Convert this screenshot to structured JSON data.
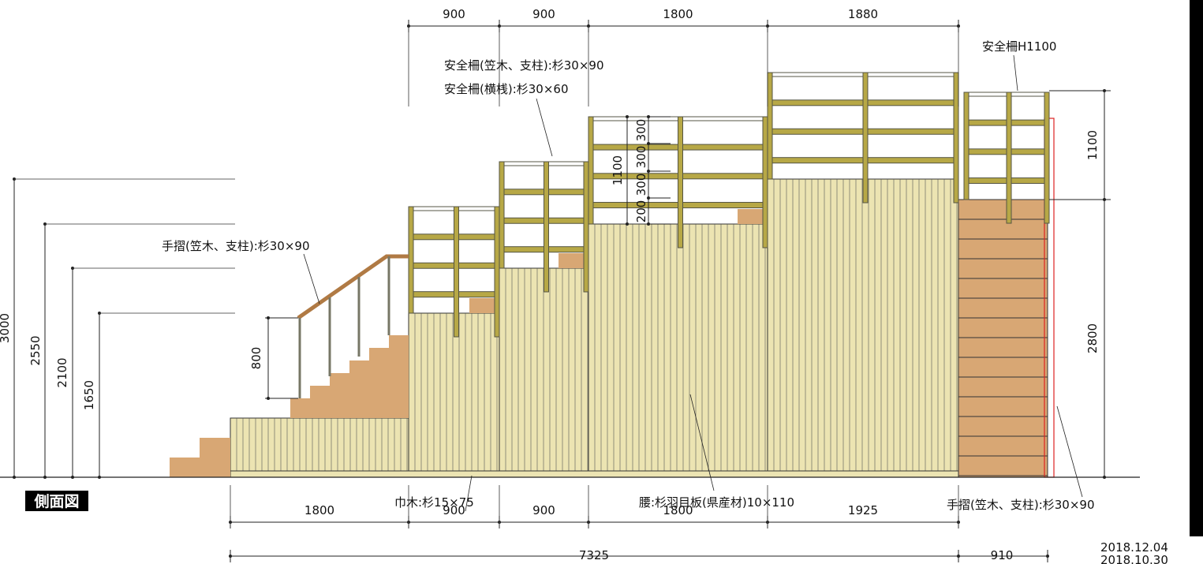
{
  "title": "側面図",
  "top_dims": [
    "900",
    "900",
    "1800",
    "1880"
  ],
  "bottom_dims": [
    "1800",
    "900",
    "900",
    "1800",
    "1925"
  ],
  "total_dims": [
    "7325",
    "910"
  ],
  "height_dims": [
    "3000",
    "2550",
    "2100",
    "1650"
  ],
  "stair_dim": "800",
  "right_dims": [
    "1100",
    "2800"
  ],
  "rail_dims": [
    "1100",
    "300",
    "300",
    "300",
    "200"
  ],
  "annotations": {
    "rail_cap": "安全柵(笠木、支柱):杉30×90",
    "rail_bar": "安全柵(横桟):杉30×60",
    "rail_height": "安全柵H1100",
    "handrail_left": "手摺(笠木、支柱):杉30×90",
    "baseboard": "巾木:杉15×75",
    "wainscot": "腰:杉羽目板(県産材)10×110",
    "handrail_right": "手摺(笠木、支柱):杉30×90"
  },
  "dates": [
    "2018.12.04",
    "2018.10.30"
  ]
}
